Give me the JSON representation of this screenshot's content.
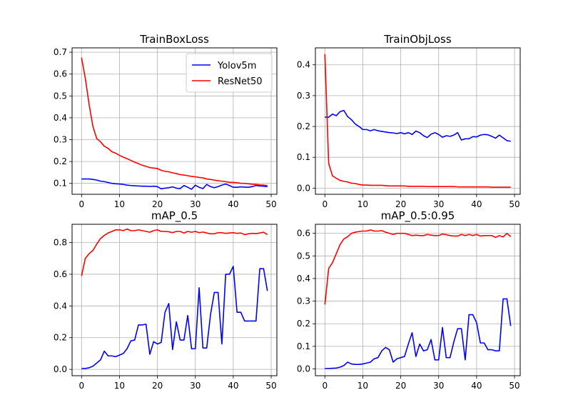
{
  "chart_data": [
    {
      "type": "line",
      "title": "TrainBoxLoss",
      "xlim": [
        -2.5,
        51.5
      ],
      "ylim": [
        0.05,
        0.72
      ],
      "xticks": [
        0,
        10,
        20,
        30,
        40,
        50
      ],
      "yticks": [
        0.1,
        0.2,
        0.3,
        0.4,
        0.5,
        0.6,
        0.7
      ],
      "ytick_labels": [
        "0.1",
        "0.2",
        "0.3",
        "0.4",
        "0.5",
        "0.6",
        "0.7"
      ],
      "grid": true,
      "legend": "top-right",
      "series": [
        {
          "name": "Yolov5m",
          "color": "#0000ff",
          "x": [
            0,
            1,
            2,
            3,
            4,
            5,
            6,
            7,
            8,
            9,
            10,
            11,
            12,
            13,
            14,
            15,
            16,
            17,
            18,
            19,
            20,
            21,
            22,
            23,
            24,
            25,
            26,
            27,
            28,
            29,
            30,
            31,
            32,
            33,
            34,
            35,
            36,
            37,
            38,
            39,
            40,
            41,
            42,
            43,
            44,
            45,
            46,
            47,
            48,
            49
          ],
          "values": [
            0.12,
            0.12,
            0.12,
            0.118,
            0.115,
            0.11,
            0.108,
            0.104,
            0.1,
            0.098,
            0.097,
            0.095,
            0.092,
            0.09,
            0.089,
            0.088,
            0.087,
            0.087,
            0.086,
            0.087,
            0.085,
            0.075,
            0.078,
            0.08,
            0.084,
            0.078,
            0.076,
            0.09,
            0.082,
            0.073,
            0.092,
            0.082,
            0.076,
            0.095,
            0.085,
            0.08,
            0.085,
            0.092,
            0.097,
            0.09,
            0.082,
            0.082,
            0.084,
            0.083,
            0.082,
            0.085,
            0.09,
            0.088,
            0.087,
            0.085
          ]
        },
        {
          "name": "ResNet50",
          "color": "#ff0000",
          "x": [
            0,
            1,
            2,
            3,
            4,
            5,
            6,
            7,
            8,
            9,
            10,
            11,
            12,
            13,
            14,
            15,
            16,
            17,
            18,
            19,
            20,
            21,
            22,
            23,
            24,
            25,
            26,
            27,
            28,
            29,
            30,
            31,
            32,
            33,
            34,
            35,
            36,
            37,
            38,
            39,
            40,
            41,
            42,
            43,
            44,
            45,
            46,
            47,
            48,
            49
          ],
          "values": [
            0.675,
            0.58,
            0.46,
            0.36,
            0.305,
            0.29,
            0.27,
            0.26,
            0.245,
            0.238,
            0.228,
            0.22,
            0.213,
            0.205,
            0.197,
            0.19,
            0.183,
            0.178,
            0.172,
            0.17,
            0.168,
            0.16,
            0.155,
            0.153,
            0.148,
            0.145,
            0.14,
            0.138,
            0.135,
            0.132,
            0.13,
            0.127,
            0.125,
            0.12,
            0.118,
            0.115,
            0.112,
            0.11,
            0.108,
            0.105,
            0.104,
            0.103,
            0.1,
            0.1,
            0.098,
            0.096,
            0.095,
            0.093,
            0.092,
            0.09
          ]
        }
      ]
    },
    {
      "type": "line",
      "title": "TrainObjLoss",
      "xlim": [
        -2.5,
        51.5
      ],
      "ylim": [
        -0.02,
        0.455
      ],
      "xticks": [
        0,
        10,
        20,
        30,
        40,
        50
      ],
      "yticks": [
        0.0,
        0.1,
        0.2,
        0.3,
        0.4
      ],
      "ytick_labels": [
        "0.0",
        "0.1",
        "0.2",
        "0.3",
        "0.4"
      ],
      "grid": true,
      "series": [
        {
          "name": "Yolov5m",
          "color": "#0000ff",
          "x": [
            0,
            1,
            2,
            3,
            4,
            5,
            6,
            7,
            8,
            9,
            10,
            11,
            12,
            13,
            14,
            15,
            16,
            17,
            18,
            19,
            20,
            21,
            22,
            23,
            24,
            25,
            26,
            27,
            28,
            29,
            30,
            31,
            32,
            33,
            34,
            35,
            36,
            37,
            38,
            39,
            40,
            41,
            42,
            43,
            44,
            45,
            46,
            47,
            48,
            49
          ],
          "values": [
            0.23,
            0.23,
            0.24,
            0.235,
            0.248,
            0.252,
            0.232,
            0.222,
            0.208,
            0.2,
            0.19,
            0.19,
            0.186,
            0.19,
            0.186,
            0.184,
            0.182,
            0.18,
            0.179,
            0.177,
            0.18,
            0.176,
            0.18,
            0.174,
            0.185,
            0.18,
            0.17,
            0.164,
            0.175,
            0.18,
            0.174,
            0.165,
            0.17,
            0.168,
            0.172,
            0.18,
            0.156,
            0.16,
            0.16,
            0.167,
            0.166,
            0.172,
            0.174,
            0.173,
            0.168,
            0.162,
            0.172,
            0.163,
            0.154,
            0.152
          ]
        },
        {
          "name": "ResNet50",
          "color": "#ff0000",
          "x": [
            0,
            1,
            2,
            3,
            4,
            5,
            6,
            7,
            8,
            9,
            10,
            11,
            12,
            13,
            14,
            15,
            16,
            17,
            18,
            19,
            20,
            21,
            22,
            23,
            24,
            25,
            26,
            27,
            28,
            29,
            30,
            31,
            32,
            33,
            34,
            35,
            36,
            37,
            38,
            39,
            40,
            41,
            42,
            43,
            44,
            45,
            46,
            47,
            48,
            49
          ],
          "values": [
            0.435,
            0.08,
            0.04,
            0.032,
            0.025,
            0.022,
            0.02,
            0.016,
            0.015,
            0.012,
            0.01,
            0.01,
            0.009,
            0.009,
            0.009,
            0.009,
            0.008,
            0.007,
            0.007,
            0.007,
            0.007,
            0.007,
            0.006,
            0.006,
            0.006,
            0.006,
            0.006,
            0.005,
            0.005,
            0.005,
            0.005,
            0.005,
            0.005,
            0.005,
            0.005,
            0.004,
            0.004,
            0.004,
            0.004,
            0.004,
            0.004,
            0.004,
            0.004,
            0.004,
            0.003,
            0.003,
            0.003,
            0.003,
            0.003,
            0.003
          ]
        }
      ]
    },
    {
      "type": "line",
      "title": "mAP_0.5",
      "xlim": [
        -2.5,
        51.5
      ],
      "ylim": [
        -0.04,
        0.915
      ],
      "xticks": [
        0,
        10,
        20,
        30,
        40,
        50
      ],
      "yticks": [
        0.0,
        0.2,
        0.4,
        0.6,
        0.8
      ],
      "ytick_labels": [
        "0.0",
        "0.2",
        "0.4",
        "0.6",
        "0.8"
      ],
      "grid": true,
      "series": [
        {
          "name": "Yolov5m",
          "color": "#0000ff",
          "x": [
            0,
            1,
            2,
            3,
            4,
            5,
            6,
            7,
            8,
            9,
            10,
            11,
            12,
            13,
            14,
            15,
            16,
            17,
            18,
            19,
            20,
            21,
            22,
            23,
            24,
            25,
            26,
            27,
            28,
            29,
            30,
            31,
            32,
            33,
            34,
            35,
            36,
            37,
            38,
            39,
            40,
            41,
            42,
            43,
            44,
            45,
            46,
            47,
            48,
            49
          ],
          "values": [
            0.005,
            0.006,
            0.01,
            0.02,
            0.04,
            0.06,
            0.115,
            0.085,
            0.085,
            0.08,
            0.09,
            0.1,
            0.13,
            0.18,
            0.185,
            0.28,
            0.28,
            0.285,
            0.095,
            0.175,
            0.16,
            0.17,
            0.36,
            0.415,
            0.125,
            0.3,
            0.185,
            0.185,
            0.34,
            0.13,
            0.13,
            0.515,
            0.135,
            0.135,
            0.345,
            0.485,
            0.485,
            0.16,
            0.6,
            0.6,
            0.65,
            0.36,
            0.36,
            0.305,
            0.305,
            0.305,
            0.305,
            0.635,
            0.635,
            0.495
          ]
        },
        {
          "name": "ResNet50",
          "color": "#ff0000",
          "x": [
            0,
            1,
            2,
            3,
            4,
            5,
            6,
            7,
            8,
            9,
            10,
            11,
            12,
            13,
            14,
            15,
            16,
            17,
            18,
            19,
            20,
            21,
            22,
            23,
            24,
            25,
            26,
            27,
            28,
            29,
            30,
            31,
            32,
            33,
            34,
            35,
            36,
            37,
            38,
            39,
            40,
            41,
            42,
            43,
            44,
            45,
            46,
            47,
            48,
            49
          ],
          "values": [
            0.59,
            0.7,
            0.73,
            0.75,
            0.79,
            0.825,
            0.845,
            0.86,
            0.87,
            0.88,
            0.88,
            0.875,
            0.885,
            0.875,
            0.875,
            0.88,
            0.875,
            0.87,
            0.865,
            0.875,
            0.88,
            0.87,
            0.87,
            0.868,
            0.862,
            0.87,
            0.87,
            0.86,
            0.87,
            0.865,
            0.87,
            0.862,
            0.866,
            0.86,
            0.855,
            0.855,
            0.862,
            0.862,
            0.858,
            0.86,
            0.862,
            0.858,
            0.86,
            0.85,
            0.855,
            0.858,
            0.856,
            0.86,
            0.865,
            0.85
          ]
        }
      ]
    },
    {
      "type": "line",
      "title": "mAP_0.5:0.95",
      "xlim": [
        -2.5,
        51.5
      ],
      "ylim": [
        -0.03,
        0.64
      ],
      "xticks": [
        0,
        10,
        20,
        30,
        40,
        50
      ],
      "yticks": [
        0.0,
        0.1,
        0.2,
        0.3,
        0.4,
        0.5,
        0.6
      ],
      "ytick_labels": [
        "0.0",
        "0.1",
        "0.2",
        "0.3",
        "0.4",
        "0.5",
        "0.6"
      ],
      "grid": true,
      "series": [
        {
          "name": "Yolov5m",
          "color": "#0000ff",
          "x": [
            0,
            1,
            2,
            3,
            4,
            5,
            6,
            7,
            8,
            9,
            10,
            11,
            12,
            13,
            14,
            15,
            16,
            17,
            18,
            19,
            20,
            21,
            22,
            23,
            24,
            25,
            26,
            27,
            28,
            29,
            30,
            31,
            32,
            33,
            34,
            35,
            36,
            37,
            38,
            39,
            40,
            41,
            42,
            43,
            44,
            45,
            46,
            47,
            48,
            49
          ],
          "values": [
            0.002,
            0.002,
            0.003,
            0.004,
            0.008,
            0.015,
            0.03,
            0.022,
            0.02,
            0.02,
            0.022,
            0.026,
            0.03,
            0.045,
            0.05,
            0.08,
            0.095,
            0.085,
            0.03,
            0.045,
            0.05,
            0.055,
            0.11,
            0.16,
            0.055,
            0.11,
            0.08,
            0.085,
            0.13,
            0.04,
            0.04,
            0.183,
            0.05,
            0.05,
            0.12,
            0.178,
            0.178,
            0.04,
            0.24,
            0.24,
            0.205,
            0.115,
            0.115,
            0.085,
            0.085,
            0.08,
            0.08,
            0.31,
            0.31,
            0.19
          ]
        },
        {
          "name": "ResNet50",
          "color": "#ff0000",
          "x": [
            0,
            1,
            2,
            3,
            4,
            5,
            6,
            7,
            8,
            9,
            10,
            11,
            12,
            13,
            14,
            15,
            16,
            17,
            18,
            19,
            20,
            21,
            22,
            23,
            24,
            25,
            26,
            27,
            28,
            29,
            30,
            31,
            32,
            33,
            34,
            35,
            36,
            37,
            38,
            39,
            40,
            41,
            42,
            43,
            44,
            45,
            46,
            47,
            48,
            49
          ],
          "values": [
            0.285,
            0.445,
            0.47,
            0.51,
            0.55,
            0.575,
            0.585,
            0.6,
            0.605,
            0.608,
            0.61,
            0.61,
            0.615,
            0.61,
            0.61,
            0.612,
            0.605,
            0.6,
            0.595,
            0.6,
            0.6,
            0.6,
            0.595,
            0.59,
            0.592,
            0.59,
            0.59,
            0.595,
            0.592,
            0.59,
            0.59,
            0.597,
            0.594,
            0.59,
            0.588,
            0.588,
            0.595,
            0.59,
            0.595,
            0.59,
            0.595,
            0.588,
            0.59,
            0.59,
            0.59,
            0.582,
            0.59,
            0.584,
            0.6,
            0.585
          ]
        }
      ]
    }
  ]
}
